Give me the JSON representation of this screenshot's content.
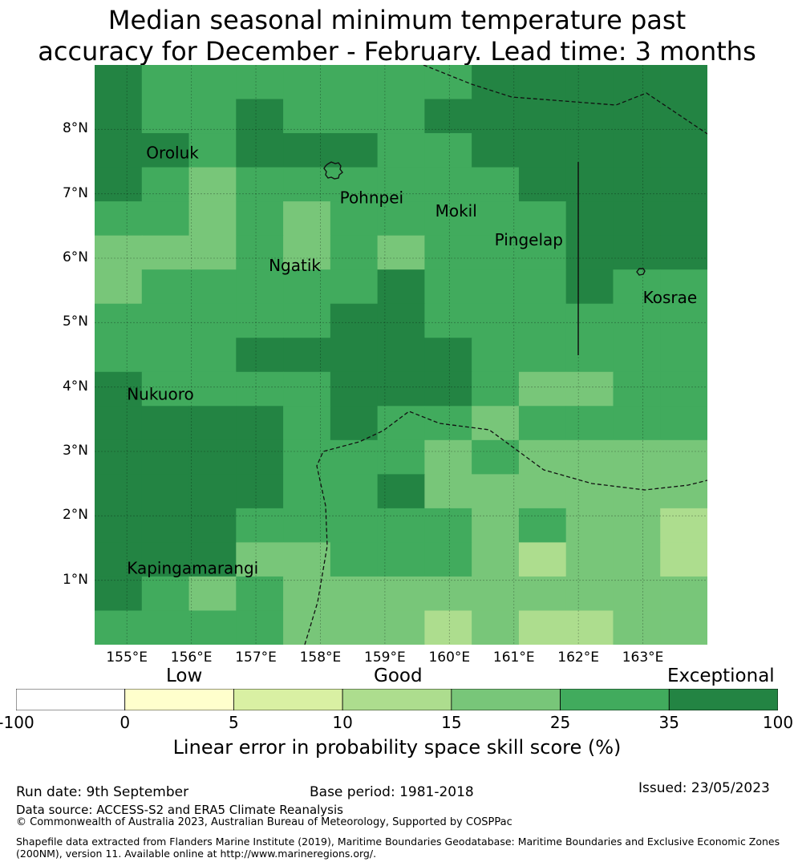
{
  "title": {
    "line1": "Median seasonal minimum temperature past",
    "line2": "accuracy for December - February. Lead time: 3 months"
  },
  "map": {
    "lon_range": [
      154.5,
      164.0
    ],
    "lat_range": [
      -0.0,
      9.0
    ],
    "lat_ticks": [
      {
        "value": 8,
        "label": "8°N"
      },
      {
        "value": 7,
        "label": "7°N"
      },
      {
        "value": 6,
        "label": "6°N"
      },
      {
        "value": 5,
        "label": "5°N"
      },
      {
        "value": 4,
        "label": "4°N"
      },
      {
        "value": 3,
        "label": "3°N"
      },
      {
        "value": 2,
        "label": "2°N"
      },
      {
        "value": 1,
        "label": "1°N"
      }
    ],
    "lon_ticks": [
      {
        "value": 155,
        "label": "155°E"
      },
      {
        "value": 156,
        "label": "156°E"
      },
      {
        "value": 157,
        "label": "157°E"
      },
      {
        "value": 158,
        "label": "158°E"
      },
      {
        "value": 159,
        "label": "159°E"
      },
      {
        "value": 160,
        "label": "160°E"
      },
      {
        "value": 161,
        "label": "161°E"
      },
      {
        "value": 162,
        "label": "162°E"
      },
      {
        "value": 163,
        "label": "163°E"
      }
    ],
    "grid_columns": 13,
    "grid_rows": 17,
    "category_colors": [
      "#ffffff",
      "#ffffcc",
      "#d9f0a3",
      "#addd8e",
      "#78c679",
      "#41ab5d",
      "#238443"
    ],
    "cell_categories": [
      [
        6,
        5,
        5,
        5,
        5,
        5,
        5,
        5,
        6,
        6,
        6,
        6,
        6
      ],
      [
        6,
        5,
        5,
        6,
        5,
        5,
        5,
        6,
        6,
        6,
        6,
        6,
        6
      ],
      [
        6,
        6,
        5,
        6,
        6,
        6,
        5,
        5,
        6,
        6,
        6,
        6,
        6
      ],
      [
        6,
        5,
        4,
        5,
        5,
        5,
        5,
        5,
        5,
        6,
        6,
        6,
        6
      ],
      [
        5,
        5,
        4,
        5,
        4,
        5,
        5,
        5,
        5,
        5,
        6,
        6,
        6
      ],
      [
        4,
        4,
        4,
        5,
        4,
        5,
        4,
        5,
        5,
        5,
        6,
        6,
        6
      ],
      [
        4,
        5,
        5,
        5,
        5,
        5,
        6,
        5,
        5,
        5,
        6,
        5,
        5
      ],
      [
        5,
        5,
        5,
        5,
        5,
        6,
        6,
        5,
        5,
        5,
        5,
        5,
        5
      ],
      [
        5,
        5,
        5,
        6,
        6,
        6,
        6,
        6,
        5,
        5,
        5,
        5,
        5
      ],
      [
        6,
        5,
        5,
        5,
        5,
        6,
        6,
        6,
        5,
        4,
        4,
        5,
        5
      ],
      [
        6,
        6,
        6,
        6,
        5,
        6,
        5,
        5,
        4,
        5,
        5,
        5,
        5
      ],
      [
        6,
        6,
        6,
        6,
        5,
        5,
        5,
        4,
        5,
        4,
        4,
        4,
        4
      ],
      [
        6,
        6,
        6,
        6,
        5,
        5,
        6,
        4,
        4,
        4,
        4,
        4,
        4
      ],
      [
        6,
        6,
        6,
        5,
        5,
        5,
        5,
        5,
        4,
        5,
        4,
        4,
        3
      ],
      [
        6,
        6,
        6,
        4,
        4,
        5,
        5,
        5,
        4,
        3,
        4,
        4,
        3
      ],
      [
        6,
        5,
        4,
        5,
        4,
        4,
        4,
        4,
        4,
        4,
        4,
        4,
        4
      ],
      [
        5,
        5,
        5,
        5,
        4,
        4,
        4,
        3,
        4,
        3,
        3,
        4,
        4
      ]
    ],
    "islands": [
      {
        "name": "Oroluk",
        "lon": 155.3,
        "lat": 7.55
      },
      {
        "name": "Pohnpei",
        "lon": 158.3,
        "lat": 6.85
      },
      {
        "name": "Mokil",
        "lon": 159.78,
        "lat": 6.65
      },
      {
        "name": "Pingelap",
        "lon": 160.7,
        "lat": 6.2
      },
      {
        "name": "Ngatik",
        "lon": 157.2,
        "lat": 5.8
      },
      {
        "name": "Kosrae",
        "lon": 163.0,
        "lat": 5.3
      },
      {
        "name": "Nukuoro",
        "lon": 155.0,
        "lat": 3.8
      },
      {
        "name": "Kapingamarangi",
        "lon": 155.0,
        "lat": 1.1
      }
    ]
  },
  "colorbar": {
    "categories": [
      {
        "label": "Low"
      },
      {
        "label": "Good"
      },
      {
        "label": "Exceptional"
      }
    ],
    "colors": [
      "#ffffff",
      "#ffffcc",
      "#d9f0a3",
      "#addd8e",
      "#78c679",
      "#41ab5d",
      "#238443"
    ],
    "ticks": [
      "-100",
      "0",
      "5",
      "10",
      "15",
      "25",
      "35",
      "100"
    ],
    "label": "Linear error in probability space skill score (%)"
  },
  "footer": {
    "run_date": "Run date: 9th September",
    "base_period": "Base period: 1981-2018",
    "issued": "Issued: 23/05/2023",
    "data_source": "Data source: ACCESS-S2 and ERA5 Climate Reanalysis",
    "copyright": "© Commonwealth of Australia 2023, Australian Bureau of Meteorology, Supported by COSPPac",
    "shapefile_line1": "Shapefile data extracted from Flanders Marine Institute (2019), Maritime Boundaries Geodatabase: Maritime Boundaries and Exclusive Economic Zones",
    "shapefile_line2": "(200NM), version 11. Available online at http://www.marineregions.org/."
  }
}
